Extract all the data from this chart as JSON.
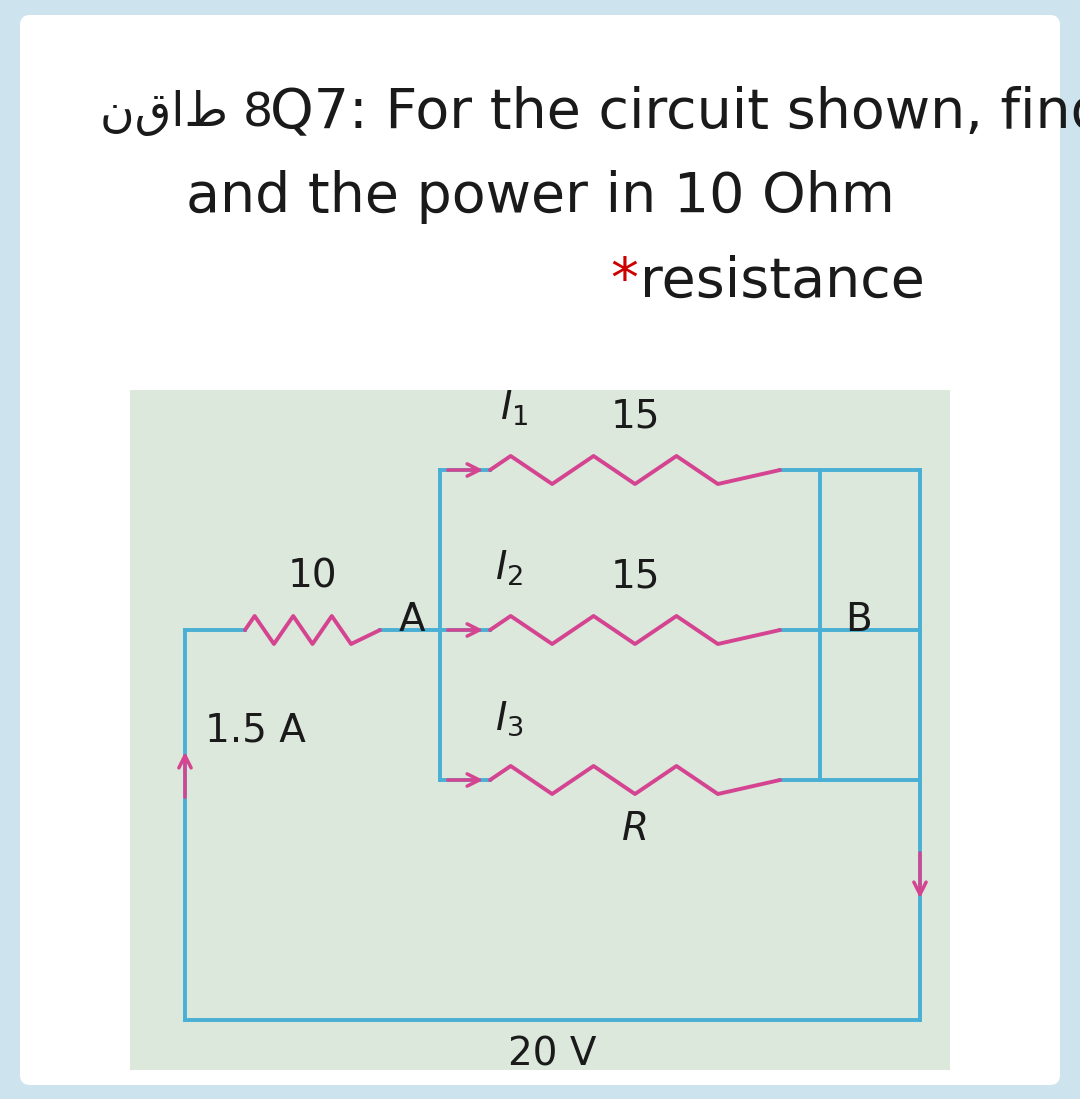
{
  "bg_outer": "#cde4ee",
  "bg_white": "#ffffff",
  "bg_circuit": "#dce8dc",
  "wire_color": "#4aafd4",
  "resistor_color": "#d44490",
  "arrow_color": "#d44490",
  "text_color": "#1a1a1a",
  "star_color": "#cc0000",
  "label_10": "10",
  "label_15_top": "15",
  "label_15_mid": "15",
  "label_R": "R",
  "label_A": "A",
  "label_B": "B",
  "label_15A": "1.5 A",
  "label_20V": "20 V",
  "font_title": 36,
  "font_circuit": 24
}
